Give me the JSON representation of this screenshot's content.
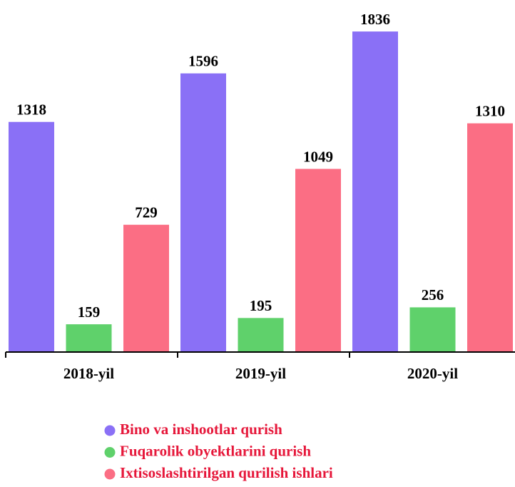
{
  "chart_data": {
    "type": "bar",
    "categories": [
      "2018-yil",
      "2019-yil",
      "2020-yil"
    ],
    "series": [
      {
        "name": "Bino va inshootlar qurish",
        "color": "#8a70f6",
        "values": [
          1318,
          1596,
          1836
        ]
      },
      {
        "name": "Fuqarolik obyektlarini qurish",
        "color": "#5fd16b",
        "values": [
          159,
          195,
          256
        ]
      },
      {
        "name": "Ixtisoslashtirilgan qurilish ishlari",
        "color": "#fb6e84",
        "values": [
          729,
          1049,
          1310
        ]
      }
    ],
    "ylim": [
      0,
      2000
    ],
    "legend_text_color": "#e6173a"
  }
}
